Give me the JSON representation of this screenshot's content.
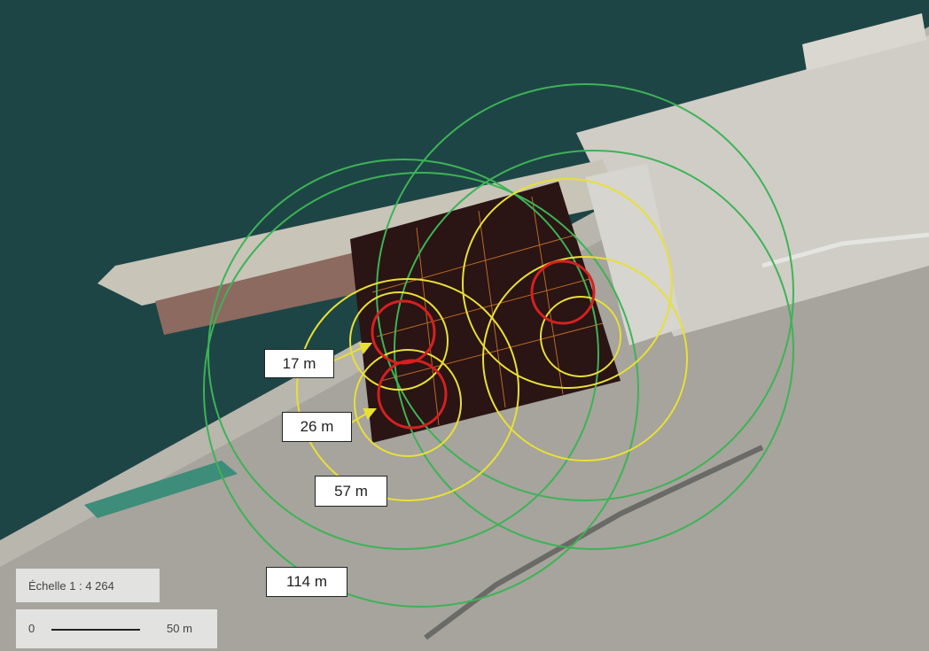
{
  "distance_labels": [
    "17 m",
    "26 m",
    "57 m",
    "114 m"
  ],
  "scale": {
    "ratio": "Échelle 1 : 4 264",
    "bar_start": "0",
    "bar_end": "50 m"
  }
}
